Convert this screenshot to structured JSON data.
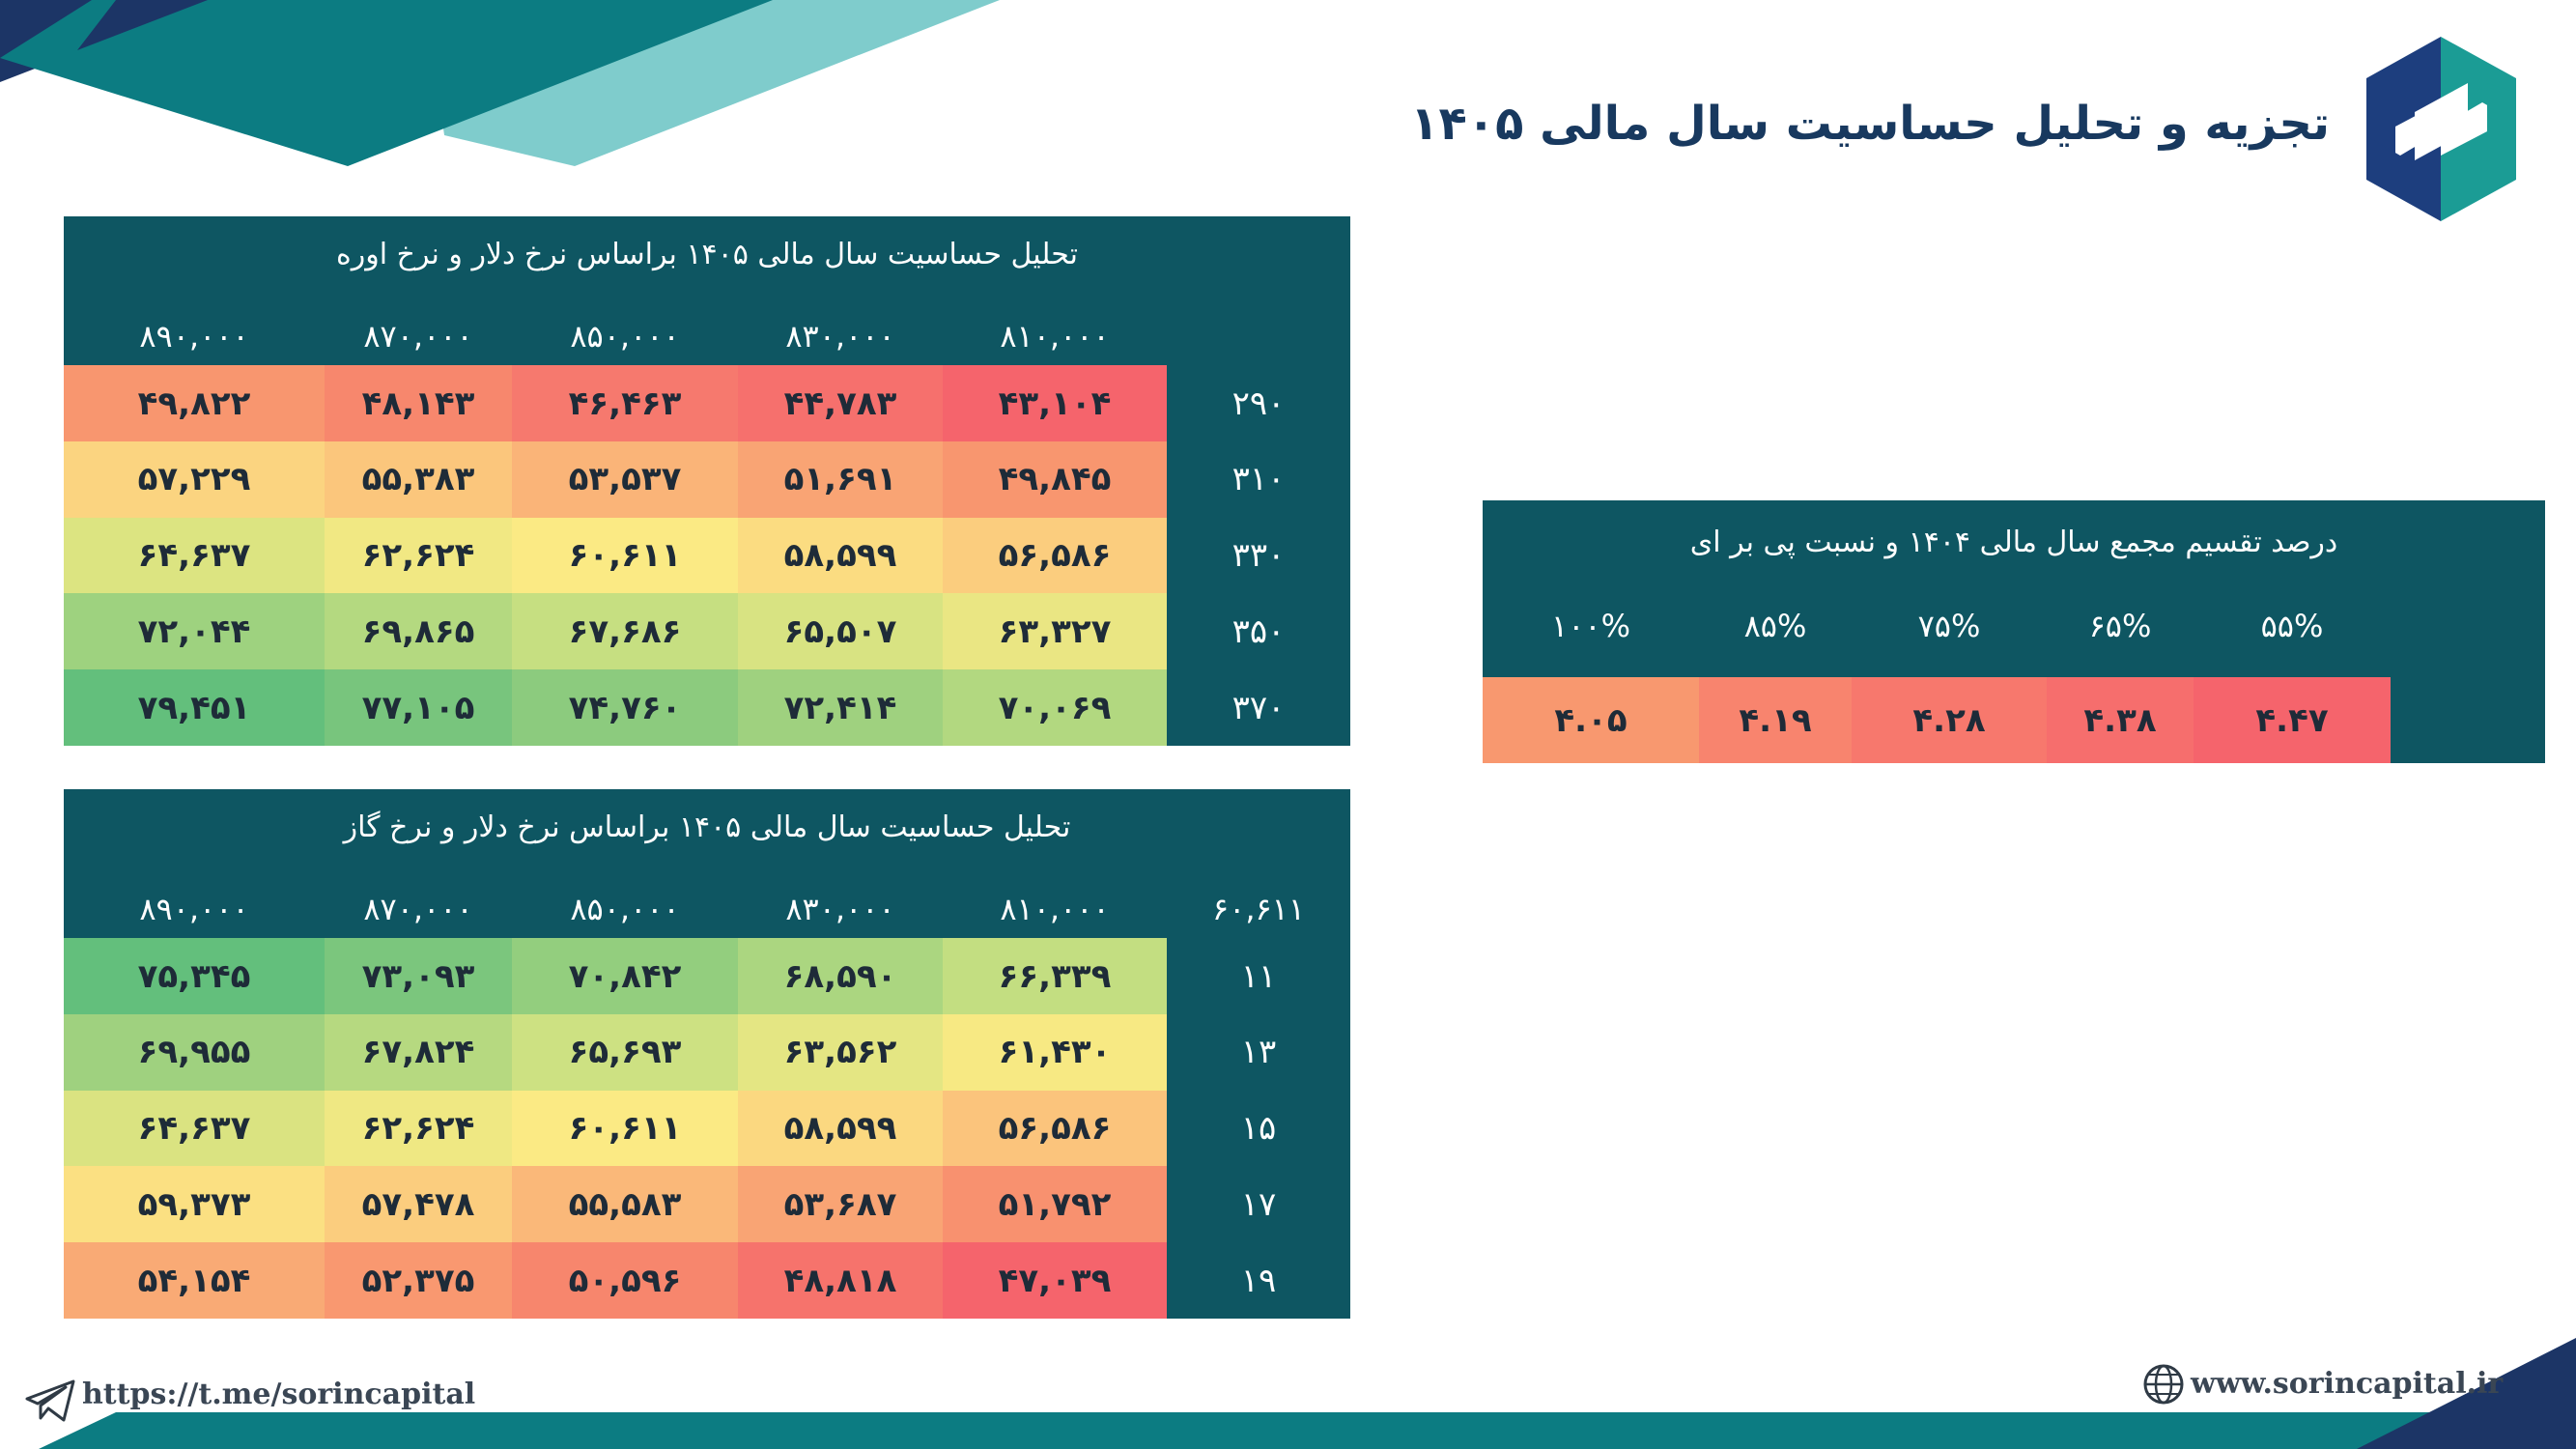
{
  "page": {
    "title": "تجزیه و تحلیل حساسیت سال مالی ۱۴۰۵"
  },
  "colors": {
    "panel": "#0e5662",
    "heat_red": "#f5646c",
    "heat_orange": "#f8956f",
    "heat_yellow": "#fbe983",
    "heat_green": "#63bf7c"
  },
  "table1": {
    "title": "تحلیل حساسیت سال مالی ۱۴۰۵ براساس نرخ دلار و نرخ اوره",
    "corner": "",
    "col_headers": [
      "۸۹۰,۰۰۰",
      "۸۷۰,۰۰۰",
      "۸۵۰,۰۰۰",
      "۸۳۰,۰۰۰",
      "۸۱۰,۰۰۰"
    ],
    "rows": [
      {
        "label": "۲۹۰",
        "values": [
          "۴۹,۸۲۲",
          "۴۸,۱۴۳",
          "۴۶,۴۶۳",
          "۴۴,۷۸۳",
          "۴۳,۱۰۴"
        ],
        "colors": [
          "#f8966f",
          "#f7876d",
          "#f6796e",
          "#f6706d",
          "#f5646c"
        ]
      },
      {
        "label": "۳۱۰",
        "values": [
          "۵۷,۲۲۹",
          "۵۵,۳۸۳",
          "۵۳,۵۳۷",
          "۵۱,۶۹۱",
          "۴۹,۸۴۵"
        ],
        "colors": [
          "#fbd480",
          "#fbc67c",
          "#fab478",
          "#f9a474",
          "#f8966f"
        ]
      },
      {
        "label": "۳۳۰",
        "values": [
          "۶۴,۶۳۷",
          "۶۲,۶۲۴",
          "۶۰,۶۱۱",
          "۵۸,۵۹۹",
          "۵۶,۵۸۶"
        ],
        "colors": [
          "#dce481",
          "#f1e883",
          "#fbea84",
          "#fbdc81",
          "#fbcd7e"
        ]
      },
      {
        "label": "۳۵۰",
        "values": [
          "۷۲,۰۴۴",
          "۶۹,۸۶۵",
          "۶۷,۶۸۶",
          "۶۵,۵۰۷",
          "۶۳,۳۲۷"
        ],
        "colors": [
          "#9ed27f",
          "#b4d980",
          "#c6df81",
          "#d8e382",
          "#eae683"
        ]
      },
      {
        "label": "۳۷۰",
        "values": [
          "۷۹,۴۵۱",
          "۷۷,۱۰۵",
          "۷۴,۷۶۰",
          "۷۲,۴۱۴",
          "۷۰,۰۶۹"
        ],
        "colors": [
          "#63bf7c",
          "#78c57d",
          "#8ccb7e",
          "#9fd17f",
          "#b2d880"
        ]
      }
    ],
    "highlight": [
      2,
      2
    ]
  },
  "table2": {
    "title": "تحلیل حساسیت سال مالی ۱۴۰۵ براساس نرخ دلار و نرخ گاز",
    "corner": "۶۰,۶۱۱",
    "col_headers": [
      "۸۹۰,۰۰۰",
      "۸۷۰,۰۰۰",
      "۸۵۰,۰۰۰",
      "۸۳۰,۰۰۰",
      "۸۱۰,۰۰۰"
    ],
    "rows": [
      {
        "label": "۱۱",
        "values": [
          "۷۵,۳۴۵",
          "۷۳,۰۹۳",
          "۷۰,۸۴۲",
          "۶۸,۵۹۰",
          "۶۶,۳۳۹"
        ],
        "colors": [
          "#63bf7c",
          "#7bc67d",
          "#93ce7e",
          "#abd680",
          "#c3de81"
        ]
      },
      {
        "label": "۱۳",
        "values": [
          "۶۹,۹۵۵",
          "۶۷,۸۲۴",
          "۶۵,۶۹۳",
          "۶۳,۵۶۲",
          "۶۱,۴۳۰"
        ],
        "colors": [
          "#9fd17f",
          "#b6d980",
          "#cde182",
          "#e4e683",
          "#f7e983"
        ]
      },
      {
        "label": "۱۵",
        "values": [
          "۶۴,۶۳۷",
          "۶۲,۶۲۴",
          "۶۰,۶۱۱",
          "۵۸,۵۹۹",
          "۵۶,۵۸۶"
        ],
        "colors": [
          "#dae381",
          "#efe883",
          "#fbea84",
          "#fbd880",
          "#fbc47c"
        ]
      },
      {
        "label": "۱۷",
        "values": [
          "۵۹,۳۷۳",
          "۵۷,۴۷۸",
          "۵۵,۵۸۳",
          "۵۳,۶۸۷",
          "۵۱,۷۹۲"
        ],
        "colors": [
          "#fbe082",
          "#fbcd7e",
          "#fab879",
          "#f9a474",
          "#f8916f"
        ]
      },
      {
        "label": "۱۹",
        "values": [
          "۵۴,۱۵۴",
          "۵۲,۳۷۵",
          "۵۰,۵۹۶",
          "۴۸,۸۱۸",
          "۴۷,۰۳۹"
        ],
        "colors": [
          "#f9aa75",
          "#f99870",
          "#f7866d",
          "#f6736c",
          "#f5646c"
        ]
      }
    ],
    "highlight": [
      2,
      2
    ]
  },
  "table3": {
    "title": "درصد تقسیم مجمع سال مالی ۱۴۰۴ و نسبت پی بر ای",
    "col_headers": [
      "۱۰۰%",
      "۸۵%",
      "۷۵%",
      "۶۵%",
      "۵۵%"
    ],
    "values": [
      "۴.۰۵",
      "۴.۱۹",
      "۴.۲۸",
      "۴.۳۸",
      "۴.۴۷"
    ],
    "colors": [
      "#f8986f",
      "#f8846e",
      "#f7786d",
      "#f66e6d",
      "#f5646c"
    ]
  },
  "footer": {
    "telegram": "https://t.me/sorincapital",
    "website": "www.sorincapital.ir"
  }
}
